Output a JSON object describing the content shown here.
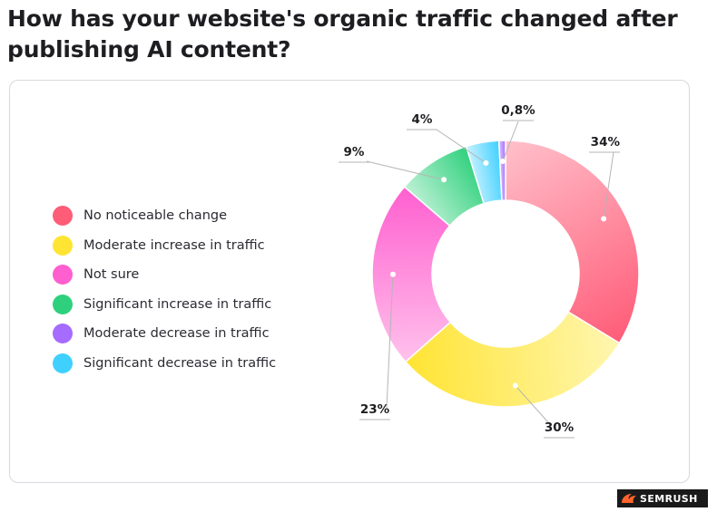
{
  "header": {
    "title": "How has your website's organic traffic changed after publishing AI content?"
  },
  "brand": {
    "logo_text": "SEMRUSH",
    "logo_color": "#ff642d"
  },
  "chart_data": {
    "type": "pie",
    "donut": true,
    "title": "How has your website's organic traffic changed after publishing AI content?",
    "legend_position": "left",
    "series": [
      {
        "name": "No noticeable change",
        "value": 34,
        "label": "34%",
        "color": "#ff5c78",
        "light": "#ffc0cb"
      },
      {
        "name": "Moderate increase in traffic",
        "value": 30,
        "label": "30%",
        "color": "#ffe433",
        "light": "#fff6b0"
      },
      {
        "name": "Not sure",
        "value": 23,
        "label": "23%",
        "color": "#ff5fcf",
        "light": "#ffc1ec"
      },
      {
        "name": "Significant increase in traffic",
        "value": 9,
        "label": "9%",
        "color": "#2fd07d",
        "light": "#bdf1d4"
      },
      {
        "name": "Significant decrease in traffic",
        "value": 4,
        "label": "4%",
        "color": "#3fd0ff",
        "light": "#c6f1ff"
      },
      {
        "name": "Moderate decrease in traffic",
        "value": 0.8,
        "label": "0,8%",
        "color": "#a66bff",
        "light": "#d9c3ff"
      }
    ],
    "legend_order": [
      "No noticeable change",
      "Moderate increase in traffic",
      "Not sure",
      "Significant increase in traffic",
      "Moderate decrease in traffic",
      "Significant decrease in traffic"
    ]
  }
}
